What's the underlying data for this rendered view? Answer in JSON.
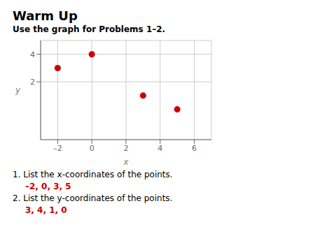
{
  "chart_data": {
    "type": "scatter",
    "title": "Warm Up",
    "subtitle": "Use the graph for Problems 1–2.",
    "x": [
      -2,
      0,
      3,
      5
    ],
    "values": [
      3,
      4,
      1,
      0
    ],
    "color": "#cc0000",
    "xlabel": "x",
    "ylabel": "y",
    "xlim": [
      -3,
      7
    ],
    "ylim": [
      -2.2,
      5
    ],
    "xticks": [
      {
        "value": -2,
        "label": "–2"
      },
      0,
      2,
      4,
      6
    ],
    "yticks": [
      2,
      4
    ],
    "grid": true,
    "annotations": [
      "1. List the x-coordinates of the points.",
      "–2, 0, 3, 5",
      "2. List the y-coordinates of the points.",
      "3, 4, 1, 0"
    ]
  }
}
